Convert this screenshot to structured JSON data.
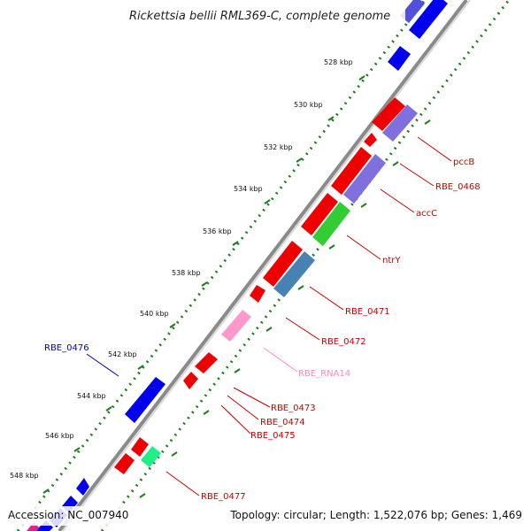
{
  "title": "Rickettsia bellii RML369-C, complete genome",
  "footer": {
    "accession": "Accession: NC_007940",
    "summary": "Topology: circular; Length: 1,522,076 bp; Genes: 1,469"
  },
  "colors": {
    "backbone": "#8a8a8a",
    "dots": "#1e7d1e",
    "cds": "#ee0000",
    "forward_gene": "#0000ee",
    "trna": "#ff99cc",
    "label_red": "#cc0000",
    "label_blue": "#0000cc",
    "label_pink": "#ff88bb"
  },
  "kbp_ticks": [
    "528 kbp",
    "530 kbp",
    "532 kbp",
    "534 kbp",
    "536 kbp",
    "538 kbp",
    "540 kbp",
    "542 kbp",
    "544 kbp",
    "546 kbp",
    "548 kbp"
  ],
  "gene_labels": [
    {
      "name": "pccB",
      "color": "#cc0000"
    },
    {
      "name": "RBE_0468",
      "color": "#cc0000"
    },
    {
      "name": "accC",
      "color": "#cc0000"
    },
    {
      "name": "ntrY",
      "color": "#cc0000"
    },
    {
      "name": "RBE_0471",
      "color": "#cc0000"
    },
    {
      "name": "RBE_0472",
      "color": "#cc0000"
    },
    {
      "name": "RBE_RNA14",
      "color": "#ff88bb"
    },
    {
      "name": "RBE_0473",
      "color": "#cc0000"
    },
    {
      "name": "RBE_0474",
      "color": "#cc0000"
    },
    {
      "name": "RBE_0475",
      "color": "#cc0000"
    },
    {
      "name": "RBE_0476",
      "color": "#0000cc"
    },
    {
      "name": "RBE_0477",
      "color": "#cc0000"
    }
  ]
}
